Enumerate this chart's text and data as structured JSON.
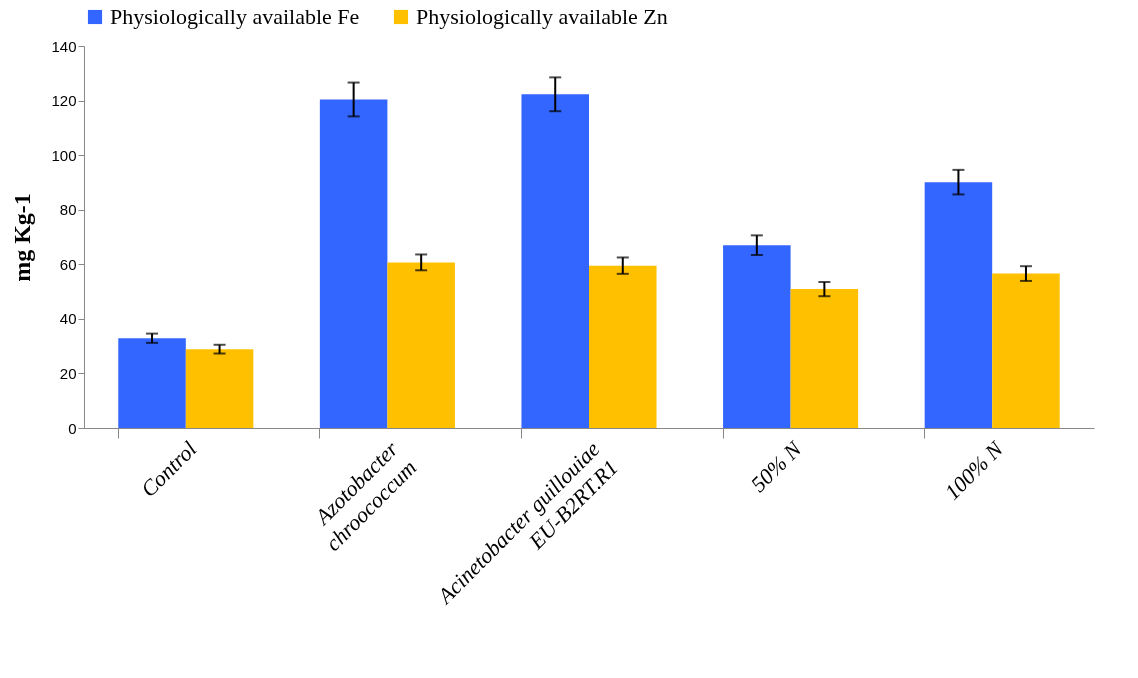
{
  "chart_data": {
    "type": "bar",
    "ylabel": "mg Kg-1",
    "categories": [
      "Control",
      "Azotobacter\nchroococcum",
      "Acinetobacter guillouiae\nEU-B2RT.R1",
      "50% N",
      "100% N"
    ],
    "series": [
      {
        "name": "Physiologically available Fe",
        "color": "#3366ff",
        "values": [
          32.9,
          120.4,
          122.3,
          67.0,
          90.1
        ],
        "errors": [
          1.7,
          6.2,
          6.2,
          3.6,
          4.5
        ]
      },
      {
        "name": "Physiologically available Zn",
        "color": "#ffc000",
        "values": [
          28.9,
          60.7,
          59.5,
          50.9,
          56.6
        ],
        "errors": [
          1.6,
          2.9,
          3.0,
          2.6,
          2.7
        ]
      }
    ],
    "ylim": [
      0,
      140
    ],
    "yticks": [
      0,
      20,
      40,
      60,
      80,
      100,
      120,
      140
    ],
    "grid": false,
    "legend": "top"
  }
}
